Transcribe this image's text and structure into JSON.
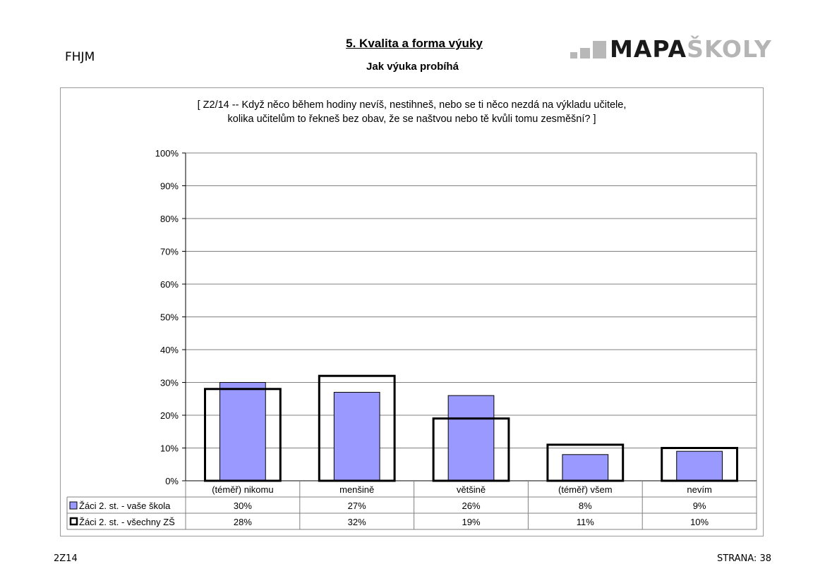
{
  "header": {
    "school_code": "FHJM",
    "section_title": "5. Kvalita a forma výuky",
    "section_subtitle": "Jak výuka probíhá",
    "logo": {
      "dark": "MAPA",
      "light": "ŠKOLY"
    }
  },
  "question": {
    "line1": "[ Z2/14 -- Když něco během hodiny nevíš, nestihneš, nebo se ti něco nezdá na výkladu učitele,",
    "line2": "kolika učitelům to řekneš bez obav, že se naštvou nebo tě kvůli tomu zesměšní? ]"
  },
  "footer": {
    "code": "2Z14",
    "page": "STRANA: 38"
  },
  "colors": {
    "fill_series": "#9999ff",
    "outline_series": "#000000",
    "grid": "#808080"
  },
  "chart_data": {
    "type": "bar",
    "categories": [
      "(téměř) nikomu",
      "menšině",
      "většině",
      "(téměř) všem",
      "nevím"
    ],
    "series": [
      {
        "name": "Žáci 2. st. - vaše škola",
        "values": [
          30,
          27,
          26,
          8,
          9
        ],
        "labels": [
          "30%",
          "27%",
          "26%",
          "8%",
          "9%"
        ],
        "style": "filled"
      },
      {
        "name": "Žáci 2. st. - všechny ZŠ",
        "values": [
          28,
          32,
          19,
          11,
          10
        ],
        "labels": [
          "28%",
          "32%",
          "19%",
          "11%",
          "10%"
        ],
        "style": "outline"
      }
    ],
    "ylim": [
      0,
      100
    ],
    "yticks": [
      "0%",
      "10%",
      "20%",
      "30%",
      "40%",
      "50%",
      "60%",
      "70%",
      "80%",
      "90%",
      "100%"
    ],
    "grid": true,
    "legend": "data table below chart"
  }
}
